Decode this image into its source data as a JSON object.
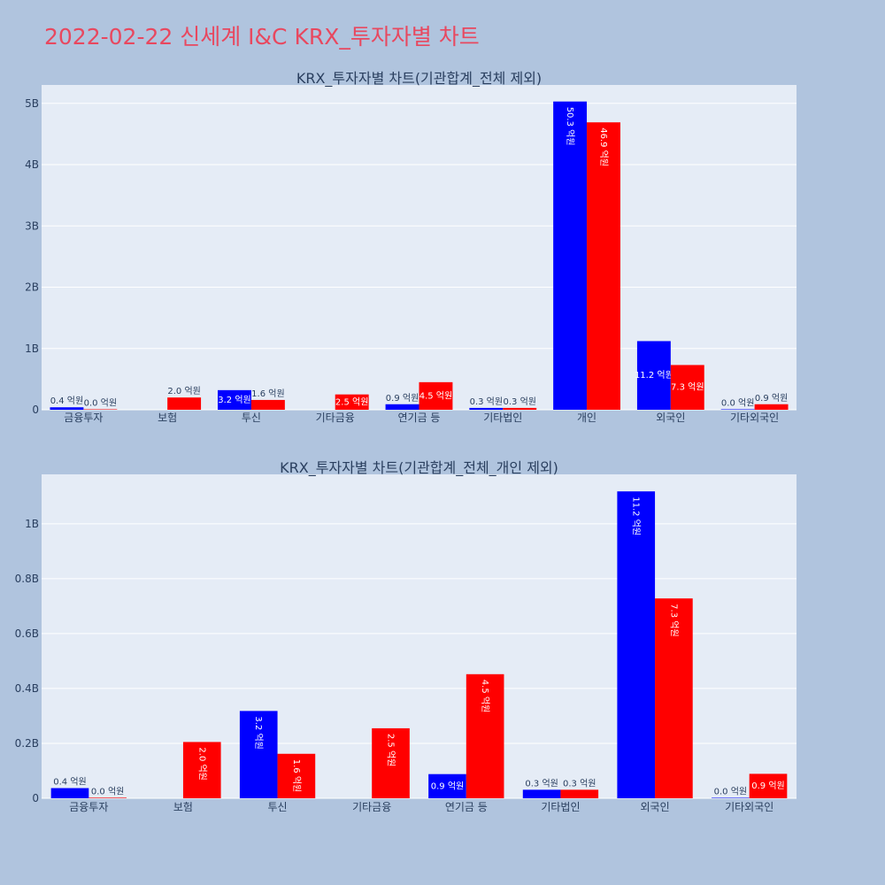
{
  "page": {
    "title": "2022-02-22 신세계 I&C KRX_투자자별 차트"
  },
  "colors": {
    "background": "#b0c4de",
    "plot_background": "#e5ecf6",
    "title": "#e8485f",
    "series_a": "#0000ff",
    "series_b": "#ff0000",
    "text": "#2a3f5f"
  },
  "chart_data": [
    {
      "type": "bar",
      "title": "KRX_투자자별 차트(기관합계_전체 제외)",
      "categories": [
        "금융투자",
        "보험",
        "투신",
        "기타금융",
        "연기금 등",
        "기타법인",
        "개인",
        "외국인",
        "기타외국인"
      ],
      "series": [
        {
          "color": "#0000ff",
          "values": [
            0.04,
            null,
            0.32,
            null,
            0.09,
            0.03,
            5.03,
            1.12,
            0.0
          ],
          "labels": [
            "0.4 억원",
            "",
            "3.2 억원",
            "",
            "0.9 억원",
            "0.3 억원",
            "50.3 억원",
            "11.2 억원",
            "0.0 억원"
          ]
        },
        {
          "color": "#ff0000",
          "values": [
            0.0,
            0.2,
            0.16,
            0.25,
            0.45,
            0.03,
            4.69,
            0.73,
            0.09
          ],
          "labels": [
            "0.0 억원",
            "2.0 억원",
            "1.6 억원",
            "2.5 억원",
            "4.5 억원",
            "0.3 억원",
            "46.9 억원",
            "7.3 억원",
            "0.9 억원"
          ]
        }
      ],
      "ylim": [
        0,
        5.3
      ],
      "yticks": [
        0,
        1,
        2,
        3,
        4,
        5
      ],
      "ytick_labels": [
        "0",
        "1B",
        "2B",
        "3B",
        "4B",
        "5B"
      ],
      "grid": true,
      "legend": "none"
    },
    {
      "type": "bar",
      "title": "KRX_투자자별 차트(기관합계_전체_개인 제외)",
      "categories": [
        "금융투자",
        "보험",
        "투신",
        "기타금융",
        "연기금 등",
        "기타법인",
        "외국인",
        "기타외국인"
      ],
      "series": [
        {
          "color": "#0000ff",
          "values": [
            0.037,
            null,
            0.318,
            null,
            0.088,
            0.031,
            1.118,
            0.001
          ],
          "labels": [
            "0.4 억원",
            "",
            "3.2 억원",
            "",
            "0.9 억원",
            "0.3 억원",
            "11.2 억원",
            "0.0 억원"
          ]
        },
        {
          "color": "#ff0000",
          "values": [
            0.002,
            0.205,
            0.162,
            0.255,
            0.452,
            0.031,
            0.728,
            0.089
          ],
          "labels": [
            "0.0 억원",
            "2.0 억원",
            "1.6 억원",
            "2.5 억원",
            "4.5 억원",
            "0.3 억원",
            "7.3 억원",
            "0.9 억원"
          ]
        }
      ],
      "ylim": [
        0,
        1.18
      ],
      "yticks": [
        0,
        0.2,
        0.4,
        0.6,
        0.8,
        1.0
      ],
      "ytick_labels": [
        "0",
        "0.2B",
        "0.4B",
        "0.6B",
        "0.8B",
        "1B"
      ],
      "grid": true,
      "legend": "none"
    }
  ]
}
